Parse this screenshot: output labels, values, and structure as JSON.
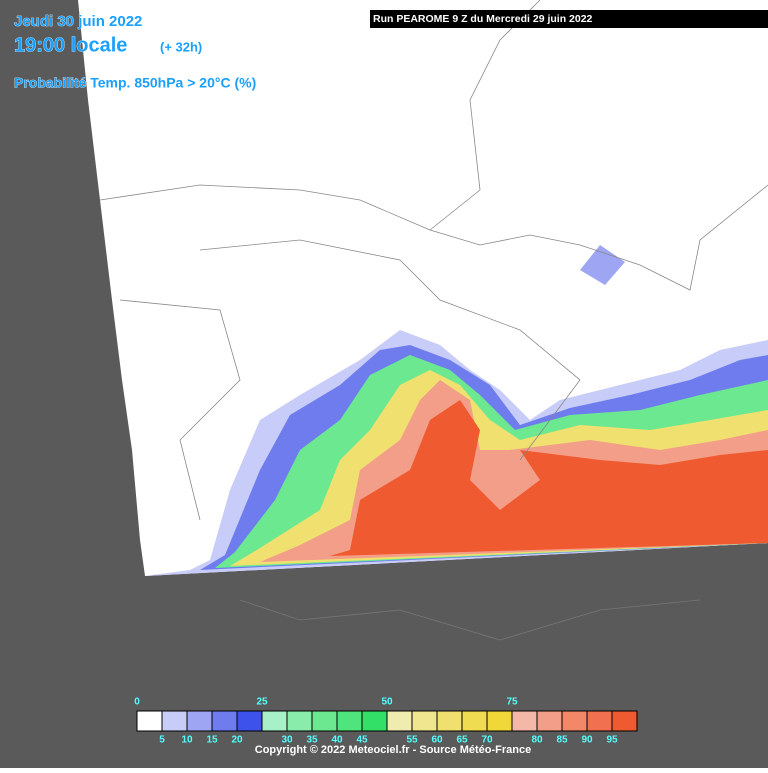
{
  "header": {
    "date": "Jeudi 30 juin 2022",
    "time": "19:00 locale",
    "lead": "(+ 32h)",
    "parameter": "Probabilité Temp. 850hPa > 20°C (%)",
    "run": "Run PEAROME 9 Z du Mercredi 29 juin 2022"
  },
  "legend": {
    "top_labels": [
      "0",
      "25",
      "50",
      "75"
    ],
    "bottom_labels": [
      "5",
      "10",
      "15",
      "20",
      "30",
      "35",
      "40",
      "45",
      "55",
      "60",
      "65",
      "70",
      "80",
      "85",
      "90",
      "95"
    ],
    "colors": [
      "#ffffff",
      "#c8ccf8",
      "#9ea6f4",
      "#6e7cee",
      "#3c52ea",
      "#a8f0c8",
      "#8aecaa",
      "#6ce890",
      "#50e47c",
      "#32e068",
      "#f0ecb0",
      "#f0e690",
      "#f0e070",
      "#f0dc50",
      "#f0d838",
      "#f4b8a8",
      "#f29e88",
      "#f28868",
      "#f07050",
      "#f05a30"
    ]
  },
  "footer": "Copyright © 2022 Meteociel.fr - Source Météo-France"
}
